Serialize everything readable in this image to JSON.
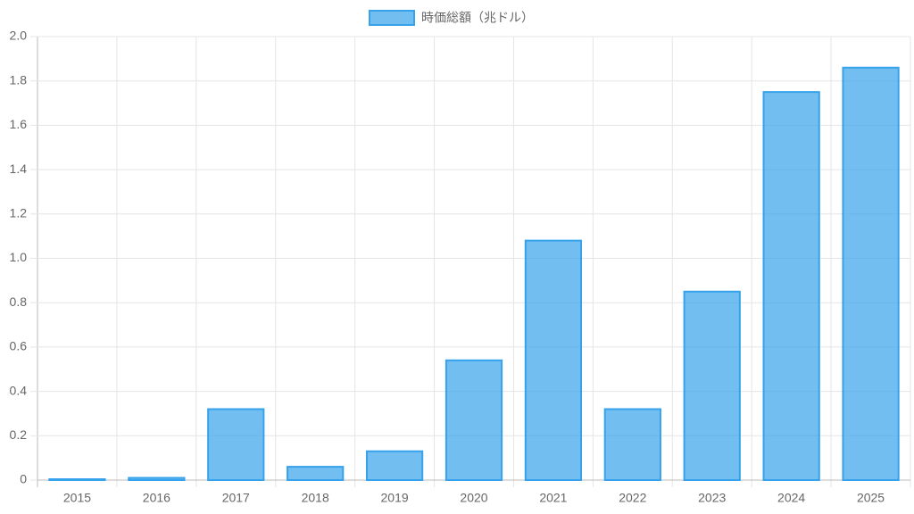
{
  "chart_data": {
    "type": "bar",
    "legend": "時価総額（兆ドル）",
    "categories": [
      "2015",
      "2016",
      "2017",
      "2018",
      "2019",
      "2020",
      "2021",
      "2022",
      "2023",
      "2024",
      "2025"
    ],
    "values": [
      0.004,
      0.01,
      0.32,
      0.06,
      0.13,
      0.54,
      1.08,
      0.32,
      0.85,
      1.75,
      1.86
    ],
    "color": "#36a2eb",
    "ylim": [
      0,
      2
    ],
    "yticks": [
      0,
      0.2,
      0.4,
      0.6,
      0.8,
      {
        "value": 1,
        "label": "1.0"
      },
      1.2,
      1.4,
      1.6,
      1.8,
      {
        "value": 2,
        "label": "2.0"
      }
    ],
    "grid": true
  }
}
